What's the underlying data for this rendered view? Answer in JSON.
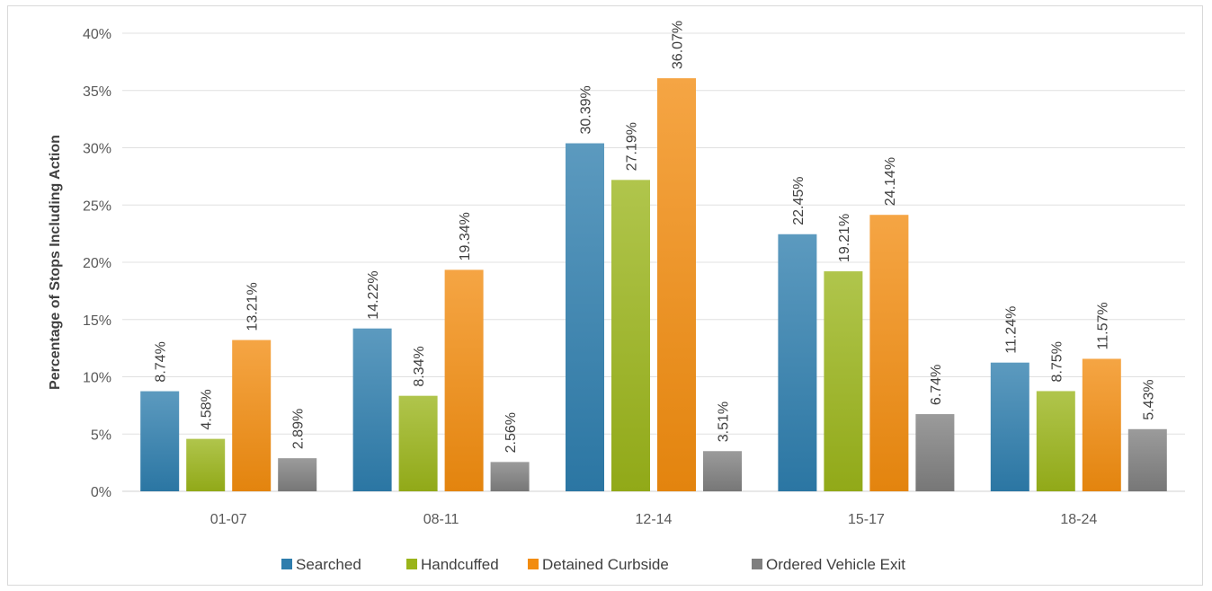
{
  "chart_data": {
    "type": "bar",
    "title": "",
    "xlabel": "",
    "ylabel": "Percentage of Stops Including Action",
    "categories": [
      "01-07",
      "08-11",
      "12-14",
      "15-17",
      "18-24"
    ],
    "series": [
      {
        "name": "Searched",
        "color": "#2e7dad",
        "values": [
          8.74,
          14.22,
          30.39,
          22.45,
          11.24
        ],
        "labels": [
          "8.74%",
          "14.22%",
          "30.39%",
          "22.45%",
          "11.24%"
        ]
      },
      {
        "name": "Handcuffed",
        "color": "#9ab41a",
        "values": [
          4.58,
          8.34,
          27.19,
          19.21,
          8.75
        ],
        "labels": [
          "4.58%",
          "8.34%",
          "27.19%",
          "19.21%",
          "8.75%"
        ]
      },
      {
        "name": "Detained Curbside",
        "color": "#f28c0f",
        "values": [
          13.21,
          19.34,
          36.07,
          24.14,
          11.57
        ],
        "labels": [
          "13.21%",
          "19.34%",
          "36.07%",
          "24.14%",
          "11.57%"
        ]
      },
      {
        "name": "Ordered Vehicle Exit",
        "color": "#7f7f7f",
        "values": [
          2.89,
          2.56,
          3.51,
          6.74,
          5.43
        ],
        "labels": [
          "2.89%",
          "2.56%",
          "3.51%",
          "6.74%",
          "5.43%"
        ]
      }
    ],
    "ylim": [
      0,
      40
    ],
    "yticks": [
      "0%",
      "5%",
      "10%",
      "15%",
      "20%",
      "25%",
      "30%",
      "35%",
      "40%"
    ],
    "grid": true,
    "legend_position": "bottom"
  }
}
